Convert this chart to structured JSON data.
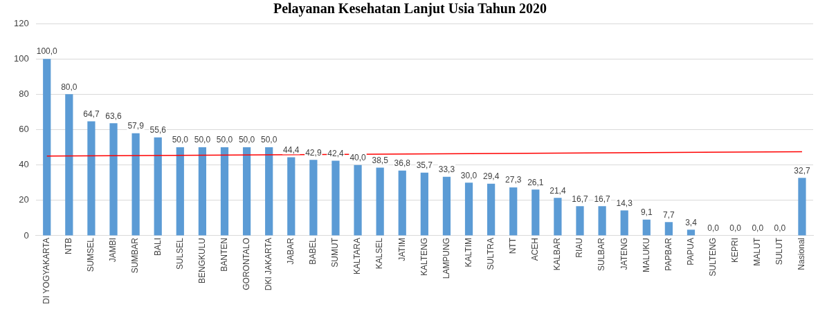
{
  "chart_data": {
    "type": "bar",
    "title": "Pelayanan Kesehatan Lanjut Usia Tahun 2020",
    "categories": [
      "DI YOGYAKARTA",
      "NTB",
      "SUMSEL",
      "JAMBI",
      "SUMBAR",
      "BALI",
      "SULSEL",
      "BENGKULU",
      "BANTEN",
      "GORONTALO",
      "DKI JAKARTA",
      "JABAR",
      "BABEL",
      "SUMUT",
      "KALTARA",
      "KALSEL",
      "JATIM",
      "KALTENG",
      "LAMPUNG",
      "KALTIM",
      "SULTRA",
      "NTT",
      "ACEH",
      "KALBAR",
      "RIAU",
      "SULBAR",
      "JATENG",
      "MALUKU",
      "PAPBAR",
      "PAPUA",
      "SULTENG",
      "KEPRI",
      "MALUT",
      "SULUT",
      "Nasional"
    ],
    "series": [
      {
        "color": "#5b9bd5",
        "values": [
          100.0,
          80.0,
          64.7,
          63.6,
          57.9,
          55.6,
          50.0,
          50.0,
          50.0,
          50.0,
          50.0,
          44.4,
          42.9,
          42.4,
          40.0,
          38.5,
          36.8,
          35.7,
          33.3,
          30.0,
          29.4,
          27.3,
          26.1,
          21.4,
          16.7,
          16.7,
          14.3,
          9.1,
          7.7,
          3.4,
          0.0,
          0.0,
          0.0,
          0.0,
          32.7
        ],
        "value_labels": [
          "100,0",
          "80,0",
          "64,7",
          "63,6",
          "57,9",
          "55,6",
          "50,0",
          "50,0",
          "50,0",
          "50,0",
          "50,0",
          "44,4",
          "42,9",
          "42,4",
          "40,0",
          "38,5",
          "36,8",
          "35,7",
          "33,3",
          "30,0",
          "29,4",
          "27,3",
          "26,1",
          "21,4",
          "16,7",
          "16,7",
          "14,3",
          "9,1",
          "7,7",
          "3,4",
          "0,0",
          "0,0",
          "0,0",
          "0,0",
          "32,7"
        ]
      },
      {
        "type": "line",
        "color": "#ff0000",
        "values": [
          45,
          null,
          null,
          null,
          null,
          null,
          null,
          null,
          null,
          null,
          null,
          null,
          null,
          null,
          null,
          null,
          null,
          null,
          null,
          null,
          null,
          null,
          null,
          null,
          null,
          null,
          null,
          null,
          null,
          null,
          null,
          null,
          null,
          null,
          47.5
        ]
      }
    ],
    "ylim": [
      0,
      120
    ],
    "yticks": [
      0,
      20,
      40,
      60,
      80,
      100,
      120
    ],
    "grid": "y",
    "legend": false,
    "marker": "none",
    "line_style": "solid"
  }
}
